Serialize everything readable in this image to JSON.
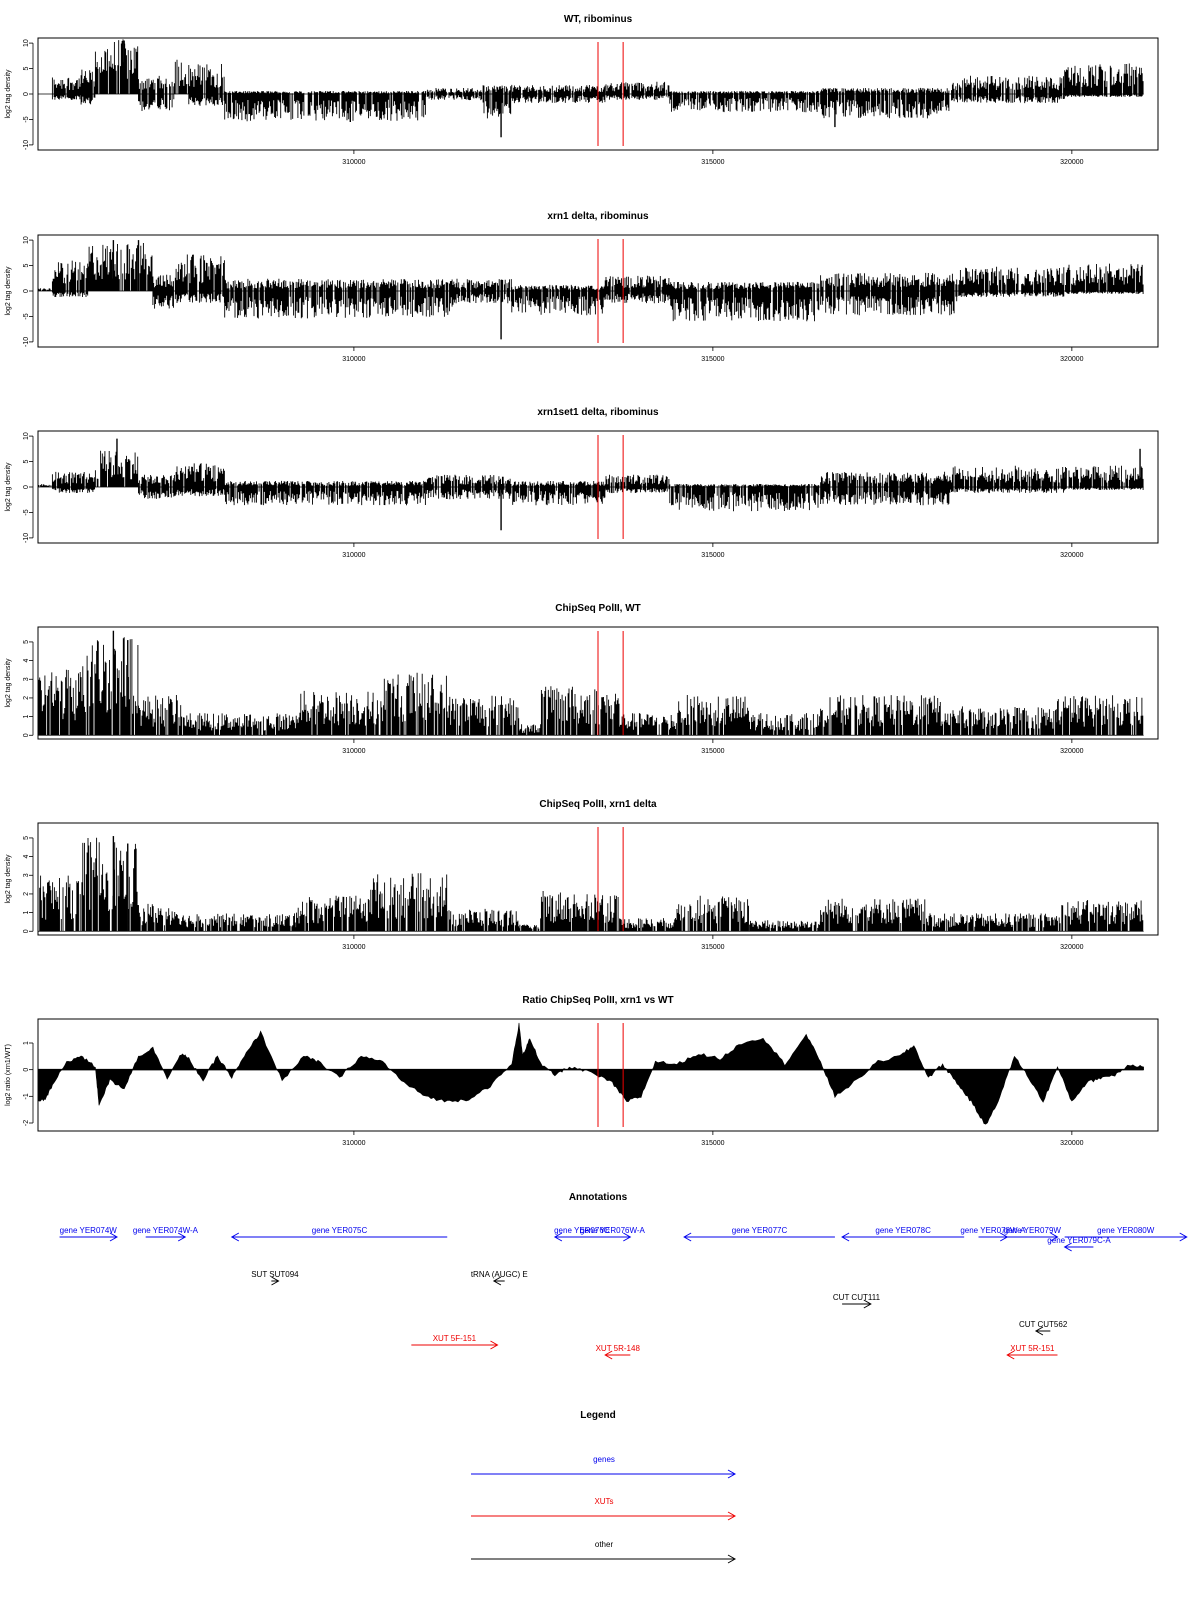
{
  "colors": {
    "gene": "#0000ee",
    "xut": "#ee0000",
    "other": "#000000",
    "marker": "#ee0000",
    "bars": "#000000"
  },
  "chart_data": [
    {
      "type": "bar",
      "title": "WT, ribominus",
      "ylabel": "log2 tag density",
      "xlim": [
        305600,
        321200
      ],
      "ylim": [
        -11,
        11
      ],
      "yticks": [
        -10,
        -5,
        0,
        5,
        10
      ],
      "ytick_labels": [
        "-10",
        "-5",
        "0",
        "5",
        "10"
      ],
      "xticks": [
        310000,
        315000,
        320000
      ],
      "xtick_labels": [
        "310000",
        "315000",
        "320000"
      ],
      "markers": [
        313400,
        313750
      ],
      "x_range": [
        305600,
        321000
      ],
      "envelope": [
        {
          "from": 305600,
          "to": 305800,
          "pos": 0,
          "neg": 0
        },
        {
          "from": 305800,
          "to": 306200,
          "pos": 3,
          "neg": -1
        },
        {
          "from": 306200,
          "to": 306400,
          "pos": 4,
          "neg": -2
        },
        {
          "from": 306400,
          "to": 307000,
          "pos": 9,
          "neg": 0
        },
        {
          "from": 307000,
          "to": 307500,
          "pos": 3,
          "neg": -3
        },
        {
          "from": 307500,
          "to": 307700,
          "pos": 6,
          "neg": 0
        },
        {
          "from": 307700,
          "to": 308200,
          "pos": 5,
          "neg": -2
        },
        {
          "from": 308200,
          "to": 311000,
          "pos": 0.5,
          "neg": -4.5
        },
        {
          "from": 311000,
          "to": 311800,
          "pos": 1,
          "neg": -1
        },
        {
          "from": 311800,
          "to": 312200,
          "pos": 1.5,
          "neg": -4
        },
        {
          "from": 312200,
          "to": 313500,
          "pos": 1.5,
          "neg": -1.5
        },
        {
          "from": 313500,
          "to": 314400,
          "pos": 2,
          "neg": -1
        },
        {
          "from": 314400,
          "to": 316500,
          "pos": 0.5,
          "neg": -3
        },
        {
          "from": 316500,
          "to": 318300,
          "pos": 1,
          "neg": -4
        },
        {
          "from": 318300,
          "to": 319900,
          "pos": 3,
          "neg": -1.5
        },
        {
          "from": 319900,
          "to": 321000,
          "pos": 5,
          "neg": -0.5
        }
      ],
      "spikes": [
        {
          "x": 312050,
          "y": -8.5
        },
        {
          "x": 306800,
          "y": 10.5
        },
        {
          "x": 309950,
          "y": -5.5
        },
        {
          "x": 316700,
          "y": -6.5
        }
      ]
    },
    {
      "type": "bar",
      "title": "xrn1 delta, ribominus",
      "ylabel": "log2 tag density",
      "xlim": [
        305600,
        321200
      ],
      "ylim": [
        -11,
        11
      ],
      "yticks": [
        -10,
        -5,
        0,
        5,
        10
      ],
      "ytick_labels": [
        "-10",
        "-5",
        "0",
        "5",
        "10"
      ],
      "xticks": [
        310000,
        315000,
        320000
      ],
      "xtick_labels": [
        "310000",
        "315000",
        "320000"
      ],
      "markers": [
        313400,
        313750
      ],
      "x_range": [
        305600,
        321000
      ],
      "envelope": [
        {
          "from": 305600,
          "to": 305800,
          "pos": 0.5,
          "neg": 0
        },
        {
          "from": 305800,
          "to": 306300,
          "pos": 5,
          "neg": -1
        },
        {
          "from": 306300,
          "to": 307200,
          "pos": 8,
          "neg": 0
        },
        {
          "from": 307200,
          "to": 307500,
          "pos": 3,
          "neg": -3
        },
        {
          "from": 307500,
          "to": 308200,
          "pos": 6,
          "neg": -2
        },
        {
          "from": 308200,
          "to": 311400,
          "pos": 2,
          "neg": -4.5
        },
        {
          "from": 311400,
          "to": 312200,
          "pos": 2,
          "neg": -2
        },
        {
          "from": 312200,
          "to": 313500,
          "pos": 1,
          "neg": -4
        },
        {
          "from": 313500,
          "to": 314400,
          "pos": 2.5,
          "neg": -2
        },
        {
          "from": 314400,
          "to": 316500,
          "pos": 1.5,
          "neg": -5
        },
        {
          "from": 316500,
          "to": 318400,
          "pos": 3,
          "neg": -4
        },
        {
          "from": 318400,
          "to": 319900,
          "pos": 4,
          "neg": -1
        },
        {
          "from": 319900,
          "to": 321000,
          "pos": 4.5,
          "neg": -0.5
        }
      ],
      "spikes": [
        {
          "x": 312050,
          "y": -9.5
        },
        {
          "x": 306650,
          "y": 10
        },
        {
          "x": 307000,
          "y": 10
        }
      ]
    },
    {
      "type": "bar",
      "title": "xrn1set1 delta, ribominus",
      "ylabel": "log2 tag density",
      "xlim": [
        305600,
        321200
      ],
      "ylim": [
        -11,
        11
      ],
      "yticks": [
        -10,
        -5,
        0,
        5,
        10
      ],
      "ytick_labels": [
        "-10",
        "-5",
        "0",
        "5",
        "10"
      ],
      "xticks": [
        310000,
        315000,
        320000
      ],
      "xtick_labels": [
        "310000",
        "315000",
        "320000"
      ],
      "markers": [
        313400,
        313750
      ],
      "x_range": [
        305600,
        321000
      ],
      "envelope": [
        {
          "from": 305600,
          "to": 305800,
          "pos": 0.5,
          "neg": 0
        },
        {
          "from": 305800,
          "to": 306400,
          "pos": 2.5,
          "neg": -1
        },
        {
          "from": 306400,
          "to": 307000,
          "pos": 6,
          "neg": 0
        },
        {
          "from": 307000,
          "to": 307500,
          "pos": 2,
          "neg": -2
        },
        {
          "from": 307500,
          "to": 308200,
          "pos": 4,
          "neg": -1.5
        },
        {
          "from": 308200,
          "to": 311000,
          "pos": 1,
          "neg": -3
        },
        {
          "from": 311000,
          "to": 312200,
          "pos": 2,
          "neg": -2
        },
        {
          "from": 312200,
          "to": 313500,
          "pos": 1,
          "neg": -3
        },
        {
          "from": 313500,
          "to": 314400,
          "pos": 2,
          "neg": -1
        },
        {
          "from": 314400,
          "to": 316500,
          "pos": 0.5,
          "neg": -4
        },
        {
          "from": 316500,
          "to": 318300,
          "pos": 2.5,
          "neg": -3
        },
        {
          "from": 318300,
          "to": 319900,
          "pos": 3.5,
          "neg": -1
        },
        {
          "from": 319900,
          "to": 321000,
          "pos": 3.5,
          "neg": -0.5
        }
      ],
      "spikes": [
        {
          "x": 312050,
          "y": -8.5
        },
        {
          "x": 306700,
          "y": 9.5
        },
        {
          "x": 320950,
          "y": 7.5
        }
      ]
    },
    {
      "type": "bar",
      "title": "ChipSeq PolII, WT",
      "ylabel": "log2 tag density",
      "xlim": [
        305600,
        321200
      ],
      "ylim": [
        -0.2,
        5.8
      ],
      "yticks": [
        0,
        1,
        2,
        3,
        4,
        5
      ],
      "ytick_labels": [
        "0",
        "1",
        "2",
        "3",
        "4",
        "5"
      ],
      "xticks": [
        310000,
        315000,
        320000
      ],
      "xtick_labels": [
        "310000",
        "315000",
        "320000"
      ],
      "markers": [
        313400,
        313750
      ],
      "x_range": [
        305600,
        321000
      ],
      "envelope": [
        {
          "from": 305600,
          "to": 306200,
          "pos": 3,
          "neg": 0
        },
        {
          "from": 306200,
          "to": 307000,
          "pos": 4.5,
          "neg": 0
        },
        {
          "from": 307000,
          "to": 307600,
          "pos": 1.8,
          "neg": 0
        },
        {
          "from": 307600,
          "to": 309200,
          "pos": 1,
          "neg": 0
        },
        {
          "from": 309200,
          "to": 310400,
          "pos": 2,
          "neg": 0
        },
        {
          "from": 310400,
          "to": 311300,
          "pos": 2.8,
          "neg": 0
        },
        {
          "from": 311300,
          "to": 312300,
          "pos": 1.8,
          "neg": 0
        },
        {
          "from": 312300,
          "to": 312600,
          "pos": 0.5,
          "neg": 0
        },
        {
          "from": 312600,
          "to": 313700,
          "pos": 2.2,
          "neg": 0
        },
        {
          "from": 313700,
          "to": 314500,
          "pos": 1,
          "neg": 0
        },
        {
          "from": 314500,
          "to": 315500,
          "pos": 1.8,
          "neg": 0
        },
        {
          "from": 315500,
          "to": 316500,
          "pos": 1,
          "neg": 0
        },
        {
          "from": 316500,
          "to": 318200,
          "pos": 1.8,
          "neg": 0
        },
        {
          "from": 318200,
          "to": 319800,
          "pos": 1.3,
          "neg": 0
        },
        {
          "from": 319800,
          "to": 321000,
          "pos": 1.8,
          "neg": 0
        }
      ],
      "spikes": [
        {
          "x": 306650,
          "y": 5.6
        },
        {
          "x": 306850,
          "y": 5.1
        }
      ]
    },
    {
      "type": "bar",
      "title": "ChipSeq PolII, xrn1 delta",
      "ylabel": "log2 tag density",
      "xlim": [
        305600,
        321200
      ],
      "ylim": [
        -0.2,
        5.8
      ],
      "yticks": [
        0,
        1,
        2,
        3,
        4,
        5
      ],
      "ytick_labels": [
        "0",
        "1",
        "2",
        "3",
        "4",
        "5"
      ],
      "xticks": [
        310000,
        315000,
        320000
      ],
      "xtick_labels": [
        "310000",
        "315000",
        "320000"
      ],
      "markers": [
        313400,
        313750
      ],
      "x_range": [
        305600,
        321000
      ],
      "envelope": [
        {
          "from": 305600,
          "to": 306200,
          "pos": 2.5,
          "neg": 0
        },
        {
          "from": 306200,
          "to": 307000,
          "pos": 4.2,
          "neg": 0
        },
        {
          "from": 307000,
          "to": 307600,
          "pos": 1.3,
          "neg": 0
        },
        {
          "from": 307600,
          "to": 309200,
          "pos": 0.8,
          "neg": 0
        },
        {
          "from": 309200,
          "to": 310200,
          "pos": 1.6,
          "neg": 0
        },
        {
          "from": 310200,
          "to": 311300,
          "pos": 2.6,
          "neg": 0
        },
        {
          "from": 311300,
          "to": 312300,
          "pos": 1,
          "neg": 0
        },
        {
          "from": 312300,
          "to": 312600,
          "pos": 0.3,
          "neg": 0
        },
        {
          "from": 312600,
          "to": 313700,
          "pos": 1.8,
          "neg": 0
        },
        {
          "from": 313700,
          "to": 314500,
          "pos": 0.6,
          "neg": 0
        },
        {
          "from": 314500,
          "to": 315500,
          "pos": 1.6,
          "neg": 0
        },
        {
          "from": 315500,
          "to": 316500,
          "pos": 0.5,
          "neg": 0
        },
        {
          "from": 316500,
          "to": 318000,
          "pos": 1.5,
          "neg": 0
        },
        {
          "from": 318000,
          "to": 319800,
          "pos": 0.8,
          "neg": 0
        },
        {
          "from": 319800,
          "to": 321000,
          "pos": 1.4,
          "neg": 0
        }
      ],
      "spikes": [
        {
          "x": 306650,
          "y": 5.1
        },
        {
          "x": 306850,
          "y": 4.7
        }
      ]
    },
    {
      "type": "area",
      "title": "Ratio ChipSeq PolII, xrn1 vs WT",
      "ylabel": "log2 ratio (xrn1/WT)",
      "xlim": [
        305600,
        321200
      ],
      "ylim": [
        -2.3,
        1.9
      ],
      "yticks": [
        -2,
        -1,
        0,
        1
      ],
      "ytick_labels": [
        "-2",
        "-1",
        "0",
        "1"
      ],
      "xticks": [
        310000,
        315000,
        320000
      ],
      "xtick_labels": [
        "310000",
        "315000",
        "320000"
      ],
      "markers": [
        313400,
        313750
      ],
      "x": [
        305600,
        305700,
        305800,
        306000,
        306200,
        306400,
        306450,
        306600,
        306800,
        307000,
        307200,
        307400,
        307600,
        307700,
        307900,
        308100,
        308300,
        308500,
        308700,
        309000,
        309300,
        309500,
        309800,
        310100,
        310400,
        310700,
        311000,
        311300,
        311600,
        311900,
        312200,
        312300,
        312350,
        312450,
        312600,
        312800,
        313000,
        313300,
        313600,
        313800,
        314000,
        314200,
        314500,
        314800,
        315100,
        315400,
        315700,
        316000,
        316300,
        316500,
        316700,
        317000,
        317300,
        317600,
        317800,
        318000,
        318200,
        318400,
        318600,
        318800,
        319000,
        319200,
        319400,
        319600,
        319800,
        320000,
        320200,
        320400,
        320600,
        320800,
        321000
      ],
      "y": [
        -1.2,
        -1.1,
        -0.6,
        0.3,
        0.5,
        0.1,
        -1.3,
        -0.4,
        -0.7,
        0.5,
        0.8,
        -0.3,
        0.6,
        0.4,
        -0.4,
        0.5,
        -0.3,
        0.6,
        1.4,
        -0.4,
        0.5,
        0.3,
        -0.3,
        0.5,
        0.3,
        -0.5,
        -1.0,
        -1.2,
        -1.1,
        -0.6,
        0.2,
        1.7,
        0.5,
        1.2,
        0.2,
        -0.2,
        0.1,
        -0.1,
        -0.5,
        -1.2,
        -1.0,
        0.3,
        0.2,
        0.6,
        0.4,
        1.0,
        1.2,
        0.2,
        1.3,
        0.3,
        -1.0,
        -0.4,
        0.3,
        0.5,
        0.9,
        -0.3,
        0.2,
        -0.5,
        -1.2,
        -2.1,
        -1.0,
        0.5,
        -0.3,
        -1.2,
        0.1,
        -1.2,
        -0.5,
        -0.3,
        -0.2,
        0.2,
        0.1
      ]
    }
  ],
  "annotations": {
    "title": "Annotations",
    "items": [
      {
        "label": "gene YER074W",
        "kind": "gene",
        "start": 305900,
        "end": 306700,
        "row": 0
      },
      {
        "label": "gene YER074W-A",
        "kind": "gene",
        "start": 307100,
        "end": 307650,
        "row": 0
      },
      {
        "label": "gene YER075C",
        "kind": "gene",
        "start": 311300,
        "end": 308300,
        "row": 0
      },
      {
        "label": "gene YER076W-A",
        "kind": "gene",
        "start": 313350,
        "end": 313850,
        "row": 0
      },
      {
        "label": "gene YER076C",
        "kind": "gene",
        "start": 313550,
        "end": 312800,
        "row": 0
      },
      {
        "label": "gene YER077C",
        "kind": "gene",
        "start": 316700,
        "end": 314600,
        "row": 0
      },
      {
        "label": "gene YER078C",
        "kind": "gene",
        "start": 318500,
        "end": 316800,
        "row": 0
      },
      {
        "label": "gene YER078W-A",
        "kind": "gene",
        "start": 318700,
        "end": 319100,
        "row": 0
      },
      {
        "label": "gene YER079W",
        "kind": "gene",
        "start": 319100,
        "end": 319800,
        "row": 0
      },
      {
        "label": "gene YER079C-A",
        "kind": "gene",
        "start": 320300,
        "end": 319900,
        "row": 1
      },
      {
        "label": "gene YER080W",
        "kind": "gene",
        "start": 319900,
        "end": 321600,
        "row": 0
      },
      {
        "label": "SUT SUT094",
        "kind": "other",
        "start": 308850,
        "end": 308950,
        "row": 2
      },
      {
        "label": "tRNA (AUGC) E",
        "kind": "other",
        "start": 312100,
        "end": 311950,
        "row": 2
      },
      {
        "label": "CUT CUT111",
        "kind": "other",
        "start": 316800,
        "end": 317200,
        "row": 3
      },
      {
        "label": "CUT CUT562",
        "kind": "other",
        "start": 319700,
        "end": 319500,
        "row": 4
      },
      {
        "label": "XUT 5F-151",
        "kind": "xut",
        "start": 310800,
        "end": 312000,
        "row": 5
      },
      {
        "label": "XUT 5R-148",
        "kind": "xut",
        "start": 313850,
        "end": 313500,
        "row": 6
      },
      {
        "label": "XUT 5R-151",
        "kind": "xut",
        "start": 319800,
        "end": 319100,
        "row": 6
      }
    ]
  },
  "legend": {
    "title": "Legend",
    "items": [
      {
        "label": "genes",
        "kind": "gene"
      },
      {
        "label": "XUTs",
        "kind": "xut"
      },
      {
        "label": "other",
        "kind": "other"
      }
    ]
  }
}
